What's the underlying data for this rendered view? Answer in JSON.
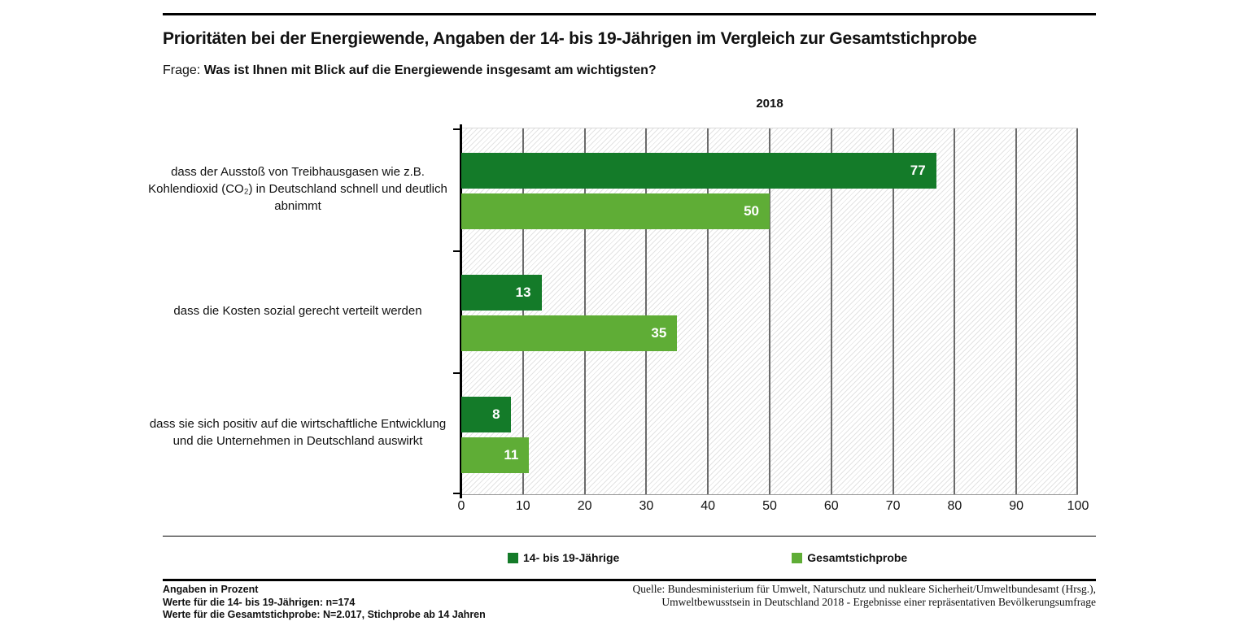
{
  "header": {
    "title": "Prioritäten bei der Energiewende, Angaben der 14- bis 19-Jährigen im Vergleich zur Gesamtstichprobe",
    "question_prefix": "Frage:",
    "question": "Was ist Ihnen mit Blick auf die Energiewende insgesamt am wichtigsten?"
  },
  "chart_data": {
    "type": "bar",
    "orientation": "horizontal",
    "title": "2018",
    "categories": [
      "dass der Ausstoß von Treibhausgasen wie z.B. Kohlendioxid (CO₂) in Deutschland schnell und deutlich abnimmt",
      "dass die Kosten sozial gerecht verteilt werden",
      "dass sie sich positiv auf die wirtschaftliche Entwicklung und die Unternehmen in Deutschland auswirkt"
    ],
    "series": [
      {
        "name": "14- bis 19-Jährige",
        "color": "#147B29",
        "values": [
          77,
          13,
          8
        ]
      },
      {
        "name": "Gesamtstichprobe",
        "color": "#5FAD36",
        "values": [
          50,
          35,
          11
        ]
      }
    ],
    "xlim": [
      0,
      100
    ],
    "xticks": [
      0,
      10,
      20,
      30,
      40,
      50,
      60,
      70,
      80,
      90,
      100
    ],
    "unit": "Prozent",
    "grid": "vertical",
    "legend_position": "bottom",
    "gridline_color": "#6b6b6b",
    "hatch_color": "#e3e3e3",
    "value_label_color": "#ffffff"
  },
  "footnotes": {
    "left": [
      "Angaben in Prozent",
      "Werte für die 14- bis 19-Jährigen: n=174",
      "Werte für die Gesamtstichprobe: N=2.017, Stichprobe ab 14 Jahren"
    ],
    "right": [
      "Quelle: Bundesministerium für Umwelt, Naturschutz und nukleare Sicherheit/Umweltbundesamt (Hrsg.),",
      "Umweltbewusstsein in Deutschland 2018 - Ergebnisse einer repräsentativen Bevölkerungsumfrage"
    ]
  }
}
